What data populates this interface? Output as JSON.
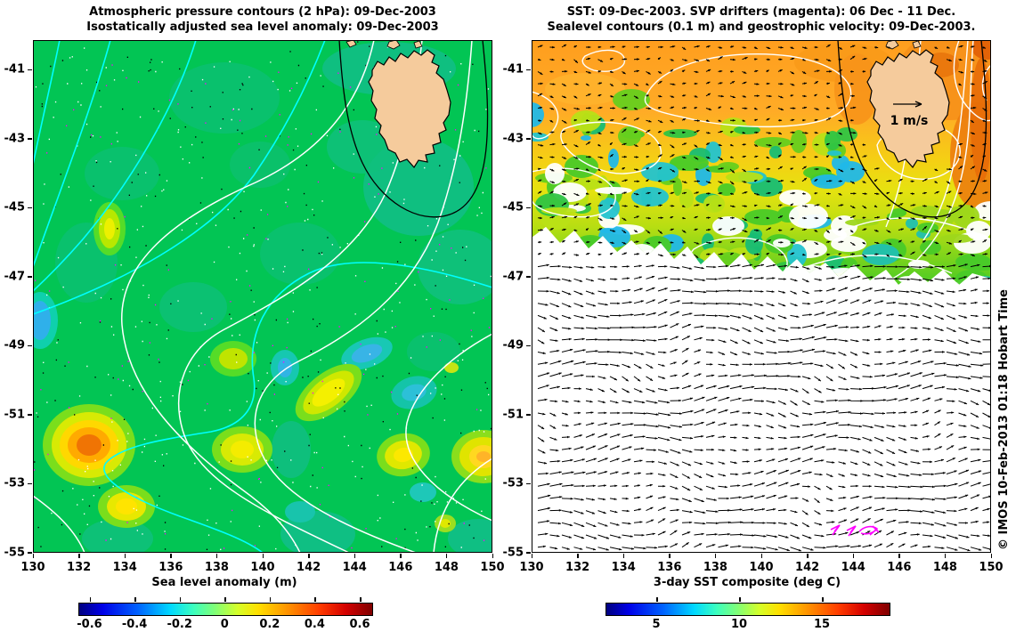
{
  "panels": {
    "left": {
      "title_line1": "Atmospheric pressure contours (2 hPa): 09-Dec-2003",
      "title_line2": "Isostatically adjusted sea level anomaly: 09-Dec-2003",
      "colorbar_label": "Sea level anomaly (m)",
      "colorbar_ticks": [
        "-0.6",
        "-0.4",
        "-0.2",
        "0",
        "0.2",
        "0.4",
        "0.6"
      ]
    },
    "right": {
      "title_line1": "SST: 09-Dec-2003. SVP drifters (magenta): 06 Dec - 11 Dec.",
      "title_line2": "Sealevel contours (0.1 m) and geostrophic velocity: 09-Dec-2003.",
      "colorbar_label": "3-day SST composite (deg C)",
      "colorbar_ticks": [
        "5",
        "10",
        "15"
      ],
      "velocity_scale_label": "1 m/s"
    }
  },
  "axes": {
    "x_tick_labels": [
      "130",
      "132",
      "134",
      "136",
      "138",
      "140",
      "142",
      "144",
      "146",
      "148",
      "150"
    ],
    "y_tick_labels": [
      "-41",
      "-43",
      "-45",
      "-47",
      "-49",
      "-51",
      "-53",
      "-55"
    ]
  },
  "watermark": "© IMOS 10-Feb-2013 01:18 Hobart Time",
  "colors": {
    "land": "#f5cb9c",
    "coastline": "#000000",
    "pressure_contour_low": "#00ffff",
    "pressure_contour_high": "#ffffff",
    "sealevel_contour": "#ffffff",
    "velocity_arrow": "#000000",
    "drifter_track": "#ff00ff",
    "background_sea_left": "#02c554"
  },
  "chart_data": [
    {
      "type": "heatmap",
      "panel": "left",
      "title": "Atmospheric pressure contours (2 hPa): 09-Dec-2003 / Isostatically adjusted sea level anomaly: 09-Dec-2003",
      "x_range": [
        130,
        150
      ],
      "y_range": [
        -55,
        -40.2
      ],
      "x_ticks": [
        130,
        132,
        134,
        136,
        138,
        140,
        142,
        144,
        146,
        148,
        150
      ],
      "y_ticks": [
        -41,
        -43,
        -45,
        -47,
        -49,
        -51,
        -53,
        -55
      ],
      "colorbar": {
        "label": "Sea level anomaly (m)",
        "ticks": [
          -0.6,
          -0.4,
          -0.2,
          0,
          0.2,
          0.4,
          0.6
        ],
        "range_estimate": [
          -0.7,
          0.7
        ],
        "colormap": "jet"
      },
      "overlays": [
        "atmospheric pressure contours every 2 hPa (cyan in north-west, white in south-east)",
        "coastline of Tasmania (black) with offshore shelf contour",
        "scattered observation dots (white, black, magenta)"
      ],
      "field_summary": "Sea level anomaly mostly 0 to 0.1 m (green); positive anomalies to ~0.4 m (yellow-orange blob near 132.5E 52S and yellow patches along 140-149E 49-53S); weak negative anomalies (blue-cyan) near 130E 49S, 144.5E 53.5S and 142-147E 48-49S"
    },
    {
      "type": "heatmap",
      "panel": "right",
      "title": "SST: 09-Dec-2003. SVP drifters (magenta): 06 Dec - 11 Dec. / Sealevel contours (0.1 m) and geostrophic velocity: 09-Dec-2003.",
      "x_range": [
        130,
        150
      ],
      "y_range": [
        -55,
        -40.2
      ],
      "x_ticks": [
        130,
        132,
        134,
        136,
        138,
        140,
        142,
        144,
        146,
        148,
        150
      ],
      "y_ticks": [
        -41,
        -43,
        -45,
        -47,
        -49,
        -51,
        -53,
        -55
      ],
      "colorbar": {
        "label": "3-day SST composite (deg C)",
        "ticks": [
          5,
          10,
          15
        ],
        "range_estimate": [
          2,
          19
        ],
        "colormap": "jet"
      },
      "overlays": [
        "sea level contours every 0.1 m (white)",
        "geostrophic velocity arrows (black) with 1 m/s scale arrow over Tasmania",
        "SVP drifter tracks (magenta) near 143.5-145E 54S",
        "coastline of Tasmania (black) with offshore shelf contour"
      ],
      "field_summary": "SST ~17-18 degC (orange) north of ~44S grading through yellow ~14 degC to green/cyan ~9-12 degC near 46-47S; white = no SST data south of ~47S and cloud gaps; warmest water (deep orange) east and north-east of Tasmania"
    }
  ]
}
